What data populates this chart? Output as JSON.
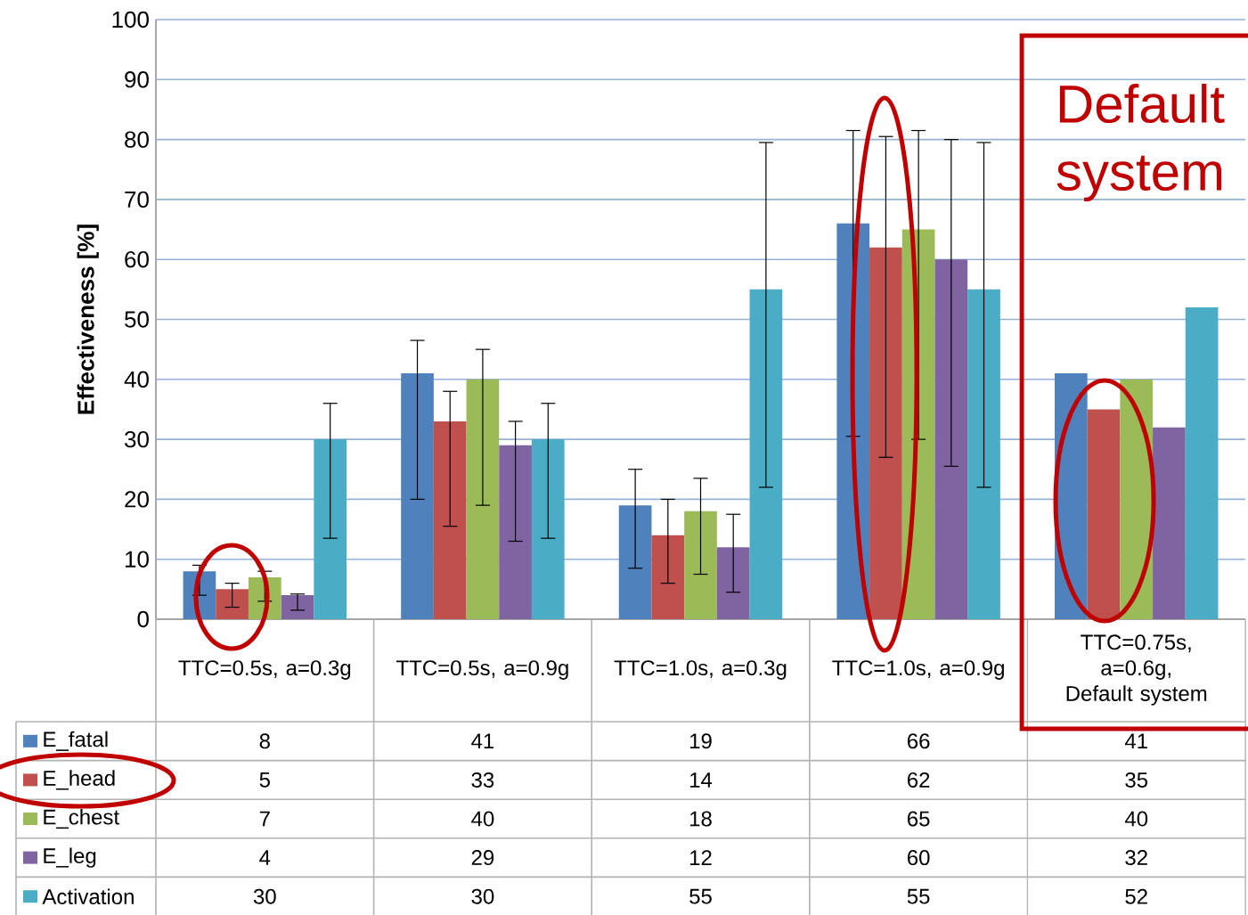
{
  "chart_data": {
    "type": "bar",
    "ylabel": "Effectiveness [%]",
    "categories": [
      "TTC=0.5s, a=0.3g",
      "TTC=0.5s, a=0.9g",
      "TTC=1.0s, a=0.3g",
      "TTC=1.0s, a=0.9g",
      "TTC=0.75s, a=0.6g, Default system"
    ],
    "series": [
      {
        "name": "E_fatal",
        "color": "#4f81bd",
        "values": [
          8,
          41,
          19,
          66,
          41
        ],
        "errors": [
          [
            4,
            9
          ],
          [
            20,
            46.5
          ],
          [
            8.5,
            25
          ],
          [
            30.5,
            81.5
          ],
          null
        ]
      },
      {
        "name": "E_head",
        "color": "#c0504d",
        "values": [
          5,
          33,
          14,
          62,
          35
        ],
        "errors": [
          [
            2,
            6
          ],
          [
            15.5,
            38
          ],
          [
            6,
            20
          ],
          [
            27,
            80.5
          ],
          null
        ]
      },
      {
        "name": "E_chest",
        "color": "#9bbb59",
        "values": [
          7,
          40,
          18,
          65,
          40
        ],
        "errors": [
          [
            3,
            8
          ],
          [
            19,
            45
          ],
          [
            7.5,
            23.5
          ],
          [
            30,
            81.5
          ],
          null
        ]
      },
      {
        "name": "E_leg",
        "color": "#8064a2",
        "values": [
          4,
          29,
          12,
          60,
          32
        ],
        "errors": [
          [
            1.5,
            4.2
          ],
          [
            13,
            33
          ],
          [
            4.5,
            17.5
          ],
          [
            25.5,
            80
          ],
          null
        ]
      },
      {
        "name": "Activation",
        "color": "#4bacc6",
        "values": [
          30,
          30,
          55,
          55,
          52
        ],
        "errors": [
          [
            13.5,
            36
          ],
          [
            13.5,
            36
          ],
          [
            22,
            79.5
          ],
          [
            22,
            79.5
          ],
          null
        ]
      }
    ],
    "ylim": [
      0,
      100
    ],
    "yticks": [
      0,
      10,
      20,
      30,
      40,
      50,
      60,
      70,
      80,
      90,
      100
    ],
    "grid": "y",
    "legend": "bottom left",
    "data_labels": true,
    "annotations": [
      "Default system"
    ]
  }
}
